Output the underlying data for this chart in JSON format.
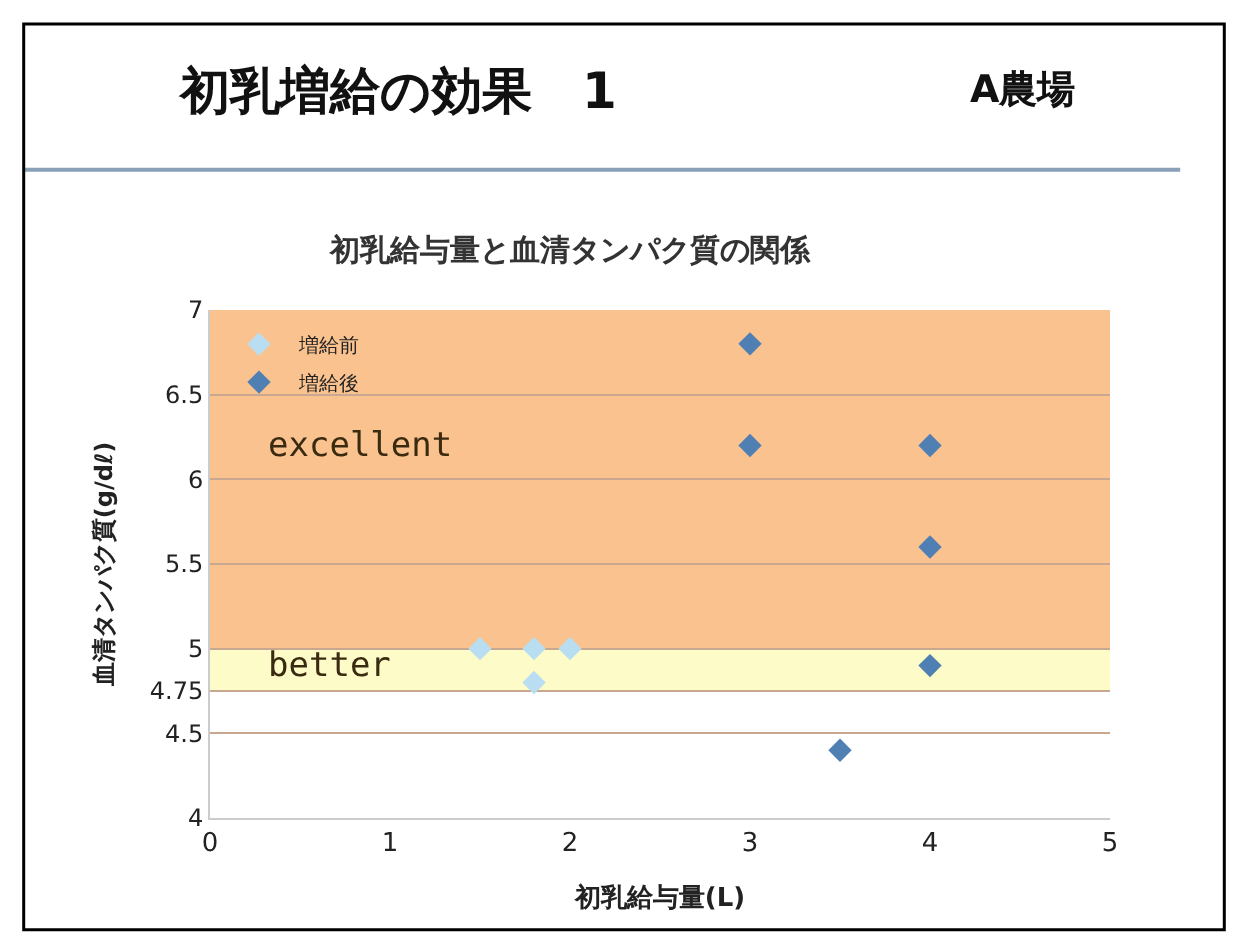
{
  "chart_data": {
    "type": "scatter",
    "title": "初乳増給の効果　1",
    "subtitle": "初乳給与量と血清タンパク質の関係",
    "annotations": [
      "A農場"
    ],
    "xlabel": "初乳給与量(L)",
    "ylabel": "血清タンパク質(g/dℓ)",
    "series": [
      {
        "name": "増給前",
        "color": "#b9ddf1",
        "x": [
          1.5,
          1.8,
          1.8,
          2
        ],
        "values": [
          5.0,
          5.0,
          4.8,
          5.0
        ]
      },
      {
        "name": "増給後",
        "color": "#4f7fb3",
        "x": [
          3,
          3,
          4,
          4,
          4,
          3.5
        ],
        "values": [
          6.8,
          6.2,
          6.2,
          5.6,
          4.9,
          4.4
        ]
      }
    ],
    "xlim": [
      0,
      5
    ],
    "xticks": [
      0,
      1,
      2,
      3,
      4,
      5
    ],
    "ylim": [
      4,
      7
    ],
    "yticks": [
      4,
      4.5,
      {
        "value": 4.75,
        "label": "4.75"
      },
      5,
      5.5,
      6,
      6.5,
      7
    ],
    "bands": [
      {
        "axis": "y",
        "from": 5,
        "to": 7,
        "label": "excellent",
        "color": "#f9c28f"
      },
      {
        "axis": "y",
        "from": 4.75,
        "to": 5,
        "label": "better",
        "color": "#fdfbc8"
      }
    ],
    "marker": "diamond",
    "grid": "y",
    "legend": "top left"
  }
}
